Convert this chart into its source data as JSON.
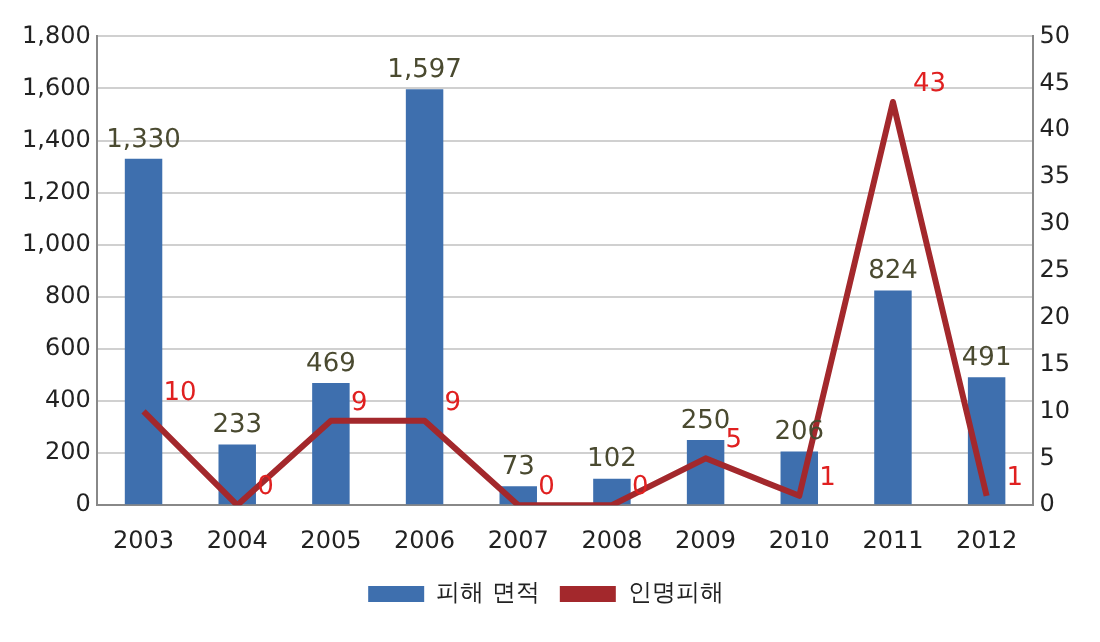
{
  "chart_data": {
    "type": "bar",
    "categories": [
      "2003",
      "2004",
      "2005",
      "2006",
      "2007",
      "2008",
      "2009",
      "2010",
      "2011",
      "2012"
    ],
    "series": [
      {
        "name": "피해 면적",
        "color": "#3e6fae",
        "values": [
          1330,
          233,
          469,
          1597,
          73,
          102,
          250,
          206,
          824,
          491
        ],
        "value_labels": [
          "1,330",
          "233",
          "469",
          "1,597",
          "73",
          "102",
          "250",
          "206",
          "824",
          "491"
        ]
      },
      {
        "name": "인명피해",
        "type": "line",
        "axis": "y2",
        "color": "#a3282c",
        "values": [
          10,
          0,
          9,
          9,
          0,
          0,
          5,
          1,
          43,
          1
        ],
        "value_labels": [
          "10",
          "0",
          "9",
          "9",
          "0",
          "0",
          "5",
          "1",
          "43",
          "1"
        ]
      }
    ],
    "ylim": [
      0,
      1800
    ],
    "yticks": [
      0,
      {
        "value": 200,
        "label": "200"
      },
      {
        "value": 400,
        "label": "400"
      },
      {
        "value": 600,
        "label": "600"
      },
      {
        "value": 800,
        "label": "800"
      },
      {
        "value": 1000,
        "label": "1,000"
      },
      {
        "value": 1200,
        "label": "1,200"
      },
      {
        "value": 1400,
        "label": "1,400"
      },
      {
        "value": 1600,
        "label": "1,600"
      },
      {
        "value": 1800,
        "label": "1,800"
      }
    ],
    "y2lim": [
      0,
      50
    ],
    "y2ticks": [
      0,
      5,
      10,
      15,
      20,
      25,
      30,
      35,
      40,
      45,
      50
    ],
    "grid": "y",
    "legend": "bottom"
  }
}
